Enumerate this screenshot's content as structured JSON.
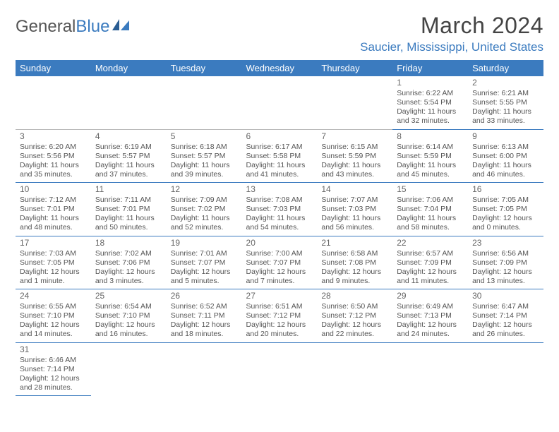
{
  "logo": {
    "text1": "General",
    "text2": "Blue"
  },
  "title": "March 2024",
  "location": "Saucier, Mississippi, United States",
  "colors": {
    "header_bg": "#3b7bbf",
    "header_fg": "#ffffff",
    "accent": "#3b7bbf",
    "text": "#555555",
    "rule_light": "#b8b8b8"
  },
  "day_headers": [
    "Sunday",
    "Monday",
    "Tuesday",
    "Wednesday",
    "Thursday",
    "Friday",
    "Saturday"
  ],
  "weeks": [
    [
      null,
      null,
      null,
      null,
      null,
      {
        "n": "1",
        "sunrise": "Sunrise: 6:22 AM",
        "sunset": "Sunset: 5:54 PM",
        "daylight": "Daylight: 11 hours and 32 minutes."
      },
      {
        "n": "2",
        "sunrise": "Sunrise: 6:21 AM",
        "sunset": "Sunset: 5:55 PM",
        "daylight": "Daylight: 11 hours and 33 minutes."
      }
    ],
    [
      {
        "n": "3",
        "sunrise": "Sunrise: 6:20 AM",
        "sunset": "Sunset: 5:56 PM",
        "daylight": "Daylight: 11 hours and 35 minutes."
      },
      {
        "n": "4",
        "sunrise": "Sunrise: 6:19 AM",
        "sunset": "Sunset: 5:57 PM",
        "daylight": "Daylight: 11 hours and 37 minutes."
      },
      {
        "n": "5",
        "sunrise": "Sunrise: 6:18 AM",
        "sunset": "Sunset: 5:57 PM",
        "daylight": "Daylight: 11 hours and 39 minutes."
      },
      {
        "n": "6",
        "sunrise": "Sunrise: 6:17 AM",
        "sunset": "Sunset: 5:58 PM",
        "daylight": "Daylight: 11 hours and 41 minutes."
      },
      {
        "n": "7",
        "sunrise": "Sunrise: 6:15 AM",
        "sunset": "Sunset: 5:59 PM",
        "daylight": "Daylight: 11 hours and 43 minutes."
      },
      {
        "n": "8",
        "sunrise": "Sunrise: 6:14 AM",
        "sunset": "Sunset: 5:59 PM",
        "daylight": "Daylight: 11 hours and 45 minutes."
      },
      {
        "n": "9",
        "sunrise": "Sunrise: 6:13 AM",
        "sunset": "Sunset: 6:00 PM",
        "daylight": "Daylight: 11 hours and 46 minutes."
      }
    ],
    [
      {
        "n": "10",
        "sunrise": "Sunrise: 7:12 AM",
        "sunset": "Sunset: 7:01 PM",
        "daylight": "Daylight: 11 hours and 48 minutes."
      },
      {
        "n": "11",
        "sunrise": "Sunrise: 7:11 AM",
        "sunset": "Sunset: 7:01 PM",
        "daylight": "Daylight: 11 hours and 50 minutes."
      },
      {
        "n": "12",
        "sunrise": "Sunrise: 7:09 AM",
        "sunset": "Sunset: 7:02 PM",
        "daylight": "Daylight: 11 hours and 52 minutes."
      },
      {
        "n": "13",
        "sunrise": "Sunrise: 7:08 AM",
        "sunset": "Sunset: 7:03 PM",
        "daylight": "Daylight: 11 hours and 54 minutes."
      },
      {
        "n": "14",
        "sunrise": "Sunrise: 7:07 AM",
        "sunset": "Sunset: 7:03 PM",
        "daylight": "Daylight: 11 hours and 56 minutes."
      },
      {
        "n": "15",
        "sunrise": "Sunrise: 7:06 AM",
        "sunset": "Sunset: 7:04 PM",
        "daylight": "Daylight: 11 hours and 58 minutes."
      },
      {
        "n": "16",
        "sunrise": "Sunrise: 7:05 AM",
        "sunset": "Sunset: 7:05 PM",
        "daylight": "Daylight: 12 hours and 0 minutes."
      }
    ],
    [
      {
        "n": "17",
        "sunrise": "Sunrise: 7:03 AM",
        "sunset": "Sunset: 7:05 PM",
        "daylight": "Daylight: 12 hours and 1 minute."
      },
      {
        "n": "18",
        "sunrise": "Sunrise: 7:02 AM",
        "sunset": "Sunset: 7:06 PM",
        "daylight": "Daylight: 12 hours and 3 minutes."
      },
      {
        "n": "19",
        "sunrise": "Sunrise: 7:01 AM",
        "sunset": "Sunset: 7:07 PM",
        "daylight": "Daylight: 12 hours and 5 minutes."
      },
      {
        "n": "20",
        "sunrise": "Sunrise: 7:00 AM",
        "sunset": "Sunset: 7:07 PM",
        "daylight": "Daylight: 12 hours and 7 minutes."
      },
      {
        "n": "21",
        "sunrise": "Sunrise: 6:58 AM",
        "sunset": "Sunset: 7:08 PM",
        "daylight": "Daylight: 12 hours and 9 minutes."
      },
      {
        "n": "22",
        "sunrise": "Sunrise: 6:57 AM",
        "sunset": "Sunset: 7:09 PM",
        "daylight": "Daylight: 12 hours and 11 minutes."
      },
      {
        "n": "23",
        "sunrise": "Sunrise: 6:56 AM",
        "sunset": "Sunset: 7:09 PM",
        "daylight": "Daylight: 12 hours and 13 minutes."
      }
    ],
    [
      {
        "n": "24",
        "sunrise": "Sunrise: 6:55 AM",
        "sunset": "Sunset: 7:10 PM",
        "daylight": "Daylight: 12 hours and 14 minutes."
      },
      {
        "n": "25",
        "sunrise": "Sunrise: 6:54 AM",
        "sunset": "Sunset: 7:10 PM",
        "daylight": "Daylight: 12 hours and 16 minutes."
      },
      {
        "n": "26",
        "sunrise": "Sunrise: 6:52 AM",
        "sunset": "Sunset: 7:11 PM",
        "daylight": "Daylight: 12 hours and 18 minutes."
      },
      {
        "n": "27",
        "sunrise": "Sunrise: 6:51 AM",
        "sunset": "Sunset: 7:12 PM",
        "daylight": "Daylight: 12 hours and 20 minutes."
      },
      {
        "n": "28",
        "sunrise": "Sunrise: 6:50 AM",
        "sunset": "Sunset: 7:12 PM",
        "daylight": "Daylight: 12 hours and 22 minutes."
      },
      {
        "n": "29",
        "sunrise": "Sunrise: 6:49 AM",
        "sunset": "Sunset: 7:13 PM",
        "daylight": "Daylight: 12 hours and 24 minutes."
      },
      {
        "n": "30",
        "sunrise": "Sunrise: 6:47 AM",
        "sunset": "Sunset: 7:14 PM",
        "daylight": "Daylight: 12 hours and 26 minutes."
      }
    ],
    [
      {
        "n": "31",
        "sunrise": "Sunrise: 6:46 AM",
        "sunset": "Sunset: 7:14 PM",
        "daylight": "Daylight: 12 hours and 28 minutes."
      },
      null,
      null,
      null,
      null,
      null,
      null
    ]
  ]
}
